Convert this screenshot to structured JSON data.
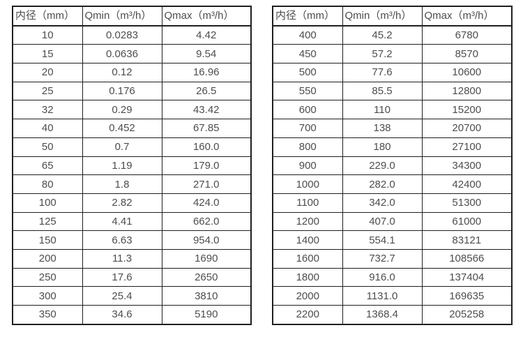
{
  "style": {
    "border_color": "#1f1f1f",
    "text_color": "#4d4d4d",
    "background_color": "#ffffff"
  },
  "tables": [
    {
      "name": "flow-rate-table-small-diameters",
      "headers": [
        "内径（mm）",
        "Qmin（m³/h）",
        "Qmax（m³/h）"
      ],
      "rows": [
        [
          "10",
          "0.0283",
          "4.42"
        ],
        [
          "15",
          "0.0636",
          "9.54"
        ],
        [
          "20",
          "0.12",
          "16.96"
        ],
        [
          "25",
          "0.176",
          "26.5"
        ],
        [
          "32",
          "0.29",
          "43.42"
        ],
        [
          "40",
          "0.452",
          "67.85"
        ],
        [
          "50",
          "0.7",
          "160.0"
        ],
        [
          "65",
          "1.19",
          "179.0"
        ],
        [
          "80",
          "1.8",
          "271.0"
        ],
        [
          "100",
          "2.82",
          "424.0"
        ],
        [
          "125",
          "4.41",
          "662.0"
        ],
        [
          "150",
          "6.63",
          "954.0"
        ],
        [
          "200",
          "11.3",
          "1690"
        ],
        [
          "250",
          "17.6",
          "2650"
        ],
        [
          "300",
          "25.4",
          "3810"
        ],
        [
          "350",
          "34.6",
          "5190"
        ]
      ]
    },
    {
      "name": "flow-rate-table-large-diameters",
      "headers": [
        "内径（mm）",
        "Qmin（m³/h）",
        "Qmax（m³/h）"
      ],
      "rows": [
        [
          "400",
          "45.2",
          "6780"
        ],
        [
          "450",
          "57.2",
          "8570"
        ],
        [
          "500",
          "77.6",
          "10600"
        ],
        [
          "550",
          "85.5",
          "12800"
        ],
        [
          "600",
          "110",
          "15200"
        ],
        [
          "700",
          "138",
          "20700"
        ],
        [
          "800",
          "180",
          "27100"
        ],
        [
          "900",
          "229.0",
          "34300"
        ],
        [
          "1000",
          "282.0",
          "42400"
        ],
        [
          "1100",
          "342.0",
          "51300"
        ],
        [
          "1200",
          "407.0",
          "61000"
        ],
        [
          "1400",
          "554.1",
          "83121"
        ],
        [
          "1600",
          "732.7",
          "108566"
        ],
        [
          "1800",
          "916.0",
          "137404"
        ],
        [
          "2000",
          "1131.0",
          "169635"
        ],
        [
          "2200",
          "1368.4",
          "205258"
        ]
      ]
    }
  ]
}
